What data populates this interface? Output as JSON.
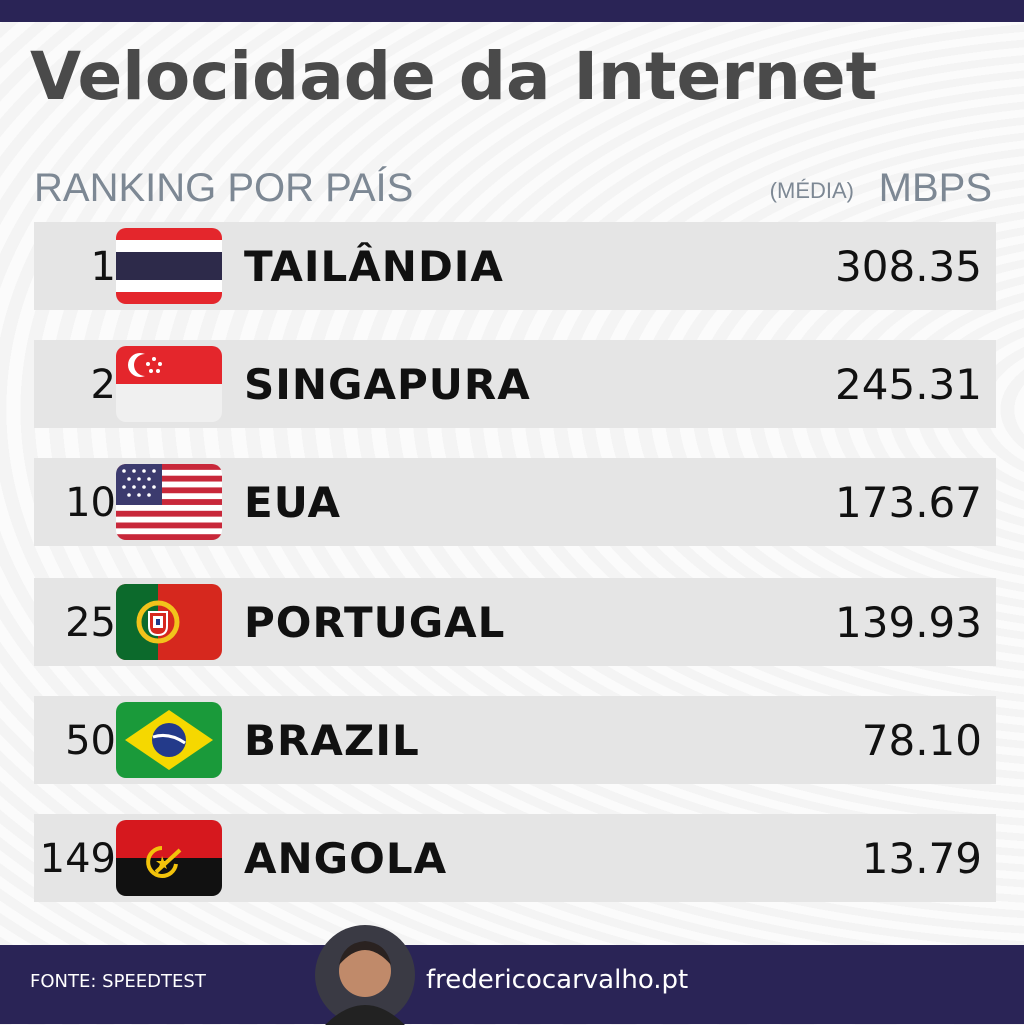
{
  "header": {
    "title": "Velocidade da Internet",
    "subtitle": "RANKING POR PAÍS",
    "unit_note": "(MÉDIA)",
    "unit": "MBPS"
  },
  "table": {
    "rows": [
      [
        "1",
        "TAILÂNDIA",
        "308.35"
      ],
      [
        "2",
        "SINGAPURA",
        "245.31"
      ],
      [
        "10",
        "EUA",
        "173.67"
      ],
      [
        "25",
        "PORTUGAL",
        "139.93"
      ],
      [
        "50",
        "BRAZIL",
        "78.10"
      ],
      [
        "149",
        "ANGOLA",
        "13.79"
      ]
    ]
  },
  "footer": {
    "source": "FONTE: SPEEDTEST",
    "site": "fredericocarvalho.pt"
  }
}
